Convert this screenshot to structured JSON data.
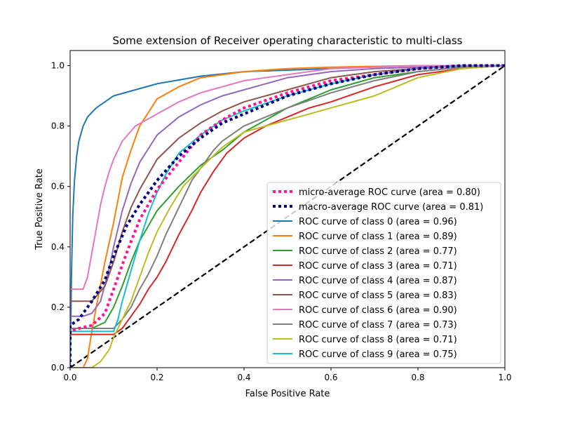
{
  "chart_data": {
    "type": "line",
    "title": "Some extension of Receiver operating characteristic to multi-class",
    "xlabel": "False Positive Rate",
    "ylabel": "True Positive Rate",
    "xlim": [
      0.0,
      1.0
    ],
    "ylim": [
      0.0,
      1.05
    ],
    "xticks": [
      "0.0",
      "0.2",
      "0.4",
      "0.6",
      "0.8",
      "1.0"
    ],
    "yticks": [
      "0.0",
      "0.2",
      "0.4",
      "0.6",
      "0.8",
      "1.0"
    ],
    "grid": false,
    "legend_position": "lower-right",
    "chance_line": {
      "x": [
        0,
        1
      ],
      "y": [
        0,
        1
      ],
      "color": "#000000",
      "style": "dashed"
    },
    "series": [
      {
        "name": "micro-average ROC curve (area = 0.80)",
        "color": "#ff1493",
        "style": "dotted",
        "x": [
          0,
          0,
          0.02,
          0.05,
          0.08,
          0.1,
          0.13,
          0.16,
          0.2,
          0.25,
          0.3,
          0.35,
          0.4,
          0.5,
          0.6,
          0.7,
          0.8,
          0.9,
          1.0
        ],
        "y": [
          0,
          0.12,
          0.13,
          0.14,
          0.18,
          0.26,
          0.38,
          0.49,
          0.59,
          0.68,
          0.77,
          0.82,
          0.86,
          0.91,
          0.95,
          0.97,
          0.99,
          1.0,
          1.0
        ]
      },
      {
        "name": "macro-average ROC curve (area = 0.81)",
        "color": "#000080",
        "style": "dotted",
        "x": [
          0,
          0,
          0.02,
          0.05,
          0.08,
          0.1,
          0.13,
          0.16,
          0.2,
          0.25,
          0.3,
          0.35,
          0.4,
          0.5,
          0.6,
          0.7,
          0.8,
          0.9,
          1.0
        ],
        "y": [
          0,
          0.14,
          0.16,
          0.22,
          0.29,
          0.37,
          0.47,
          0.54,
          0.62,
          0.7,
          0.76,
          0.81,
          0.84,
          0.9,
          0.94,
          0.97,
          0.99,
          1.0,
          1.0
        ]
      },
      {
        "name": "ROC curve of class 0 (area = 0.96)",
        "color": "#1f77b4",
        "style": "solid",
        "x": [
          0,
          0.003,
          0.006,
          0.01,
          0.015,
          0.02,
          0.03,
          0.04,
          0.06,
          0.08,
          0.1,
          0.15,
          0.2,
          0.3,
          0.4,
          0.6,
          0.8,
          1.0
        ],
        "y": [
          0,
          0.3,
          0.5,
          0.62,
          0.7,
          0.75,
          0.8,
          0.83,
          0.86,
          0.88,
          0.9,
          0.92,
          0.94,
          0.965,
          0.98,
          0.99,
          1.0,
          1.0
        ]
      },
      {
        "name": "ROC curve of class 1 (area = 0.89)",
        "color": "#ff7f0e",
        "style": "solid",
        "x": [
          0,
          0.03,
          0.04,
          0.05,
          0.06,
          0.08,
          0.1,
          0.12,
          0.14,
          0.16,
          0.2,
          0.25,
          0.3,
          0.4,
          0.5,
          0.6,
          0.8,
          1.0
        ],
        "y": [
          0,
          0,
          0.03,
          0.12,
          0.2,
          0.35,
          0.48,
          0.63,
          0.72,
          0.8,
          0.89,
          0.93,
          0.96,
          0.98,
          0.99,
          0.995,
          1.0,
          1.0
        ]
      },
      {
        "name": "ROC curve of class 2 (area = 0.77)",
        "color": "#2ca02c",
        "style": "solid",
        "x": [
          0,
          0,
          0.05,
          0.08,
          0.1,
          0.12,
          0.14,
          0.16,
          0.18,
          0.2,
          0.25,
          0.3,
          0.35,
          0.4,
          0.5,
          0.6,
          0.7,
          0.8,
          0.9,
          1.0
        ],
        "y": [
          0,
          0.13,
          0.13,
          0.15,
          0.2,
          0.27,
          0.35,
          0.42,
          0.47,
          0.52,
          0.6,
          0.67,
          0.72,
          0.78,
          0.86,
          0.92,
          0.96,
          0.98,
          0.995,
          1.0
        ]
      },
      {
        "name": "ROC curve of class 3 (area = 0.71)",
        "color": "#d62728",
        "style": "solid",
        "x": [
          0,
          0,
          0.1,
          0.12,
          0.14,
          0.16,
          0.18,
          0.2,
          0.22,
          0.25,
          0.28,
          0.3,
          0.33,
          0.36,
          0.4,
          0.45,
          0.5,
          0.55,
          0.6,
          0.7,
          0.8,
          0.9,
          1.0
        ],
        "y": [
          0,
          0.11,
          0.11,
          0.13,
          0.17,
          0.21,
          0.26,
          0.3,
          0.35,
          0.44,
          0.52,
          0.58,
          0.65,
          0.71,
          0.76,
          0.8,
          0.83,
          0.86,
          0.88,
          0.93,
          0.97,
          0.99,
          1.0
        ]
      },
      {
        "name": "ROC curve of class 4 (area = 0.87)",
        "color": "#9467bd",
        "style": "solid",
        "x": [
          0,
          0,
          0.03,
          0.05,
          0.07,
          0.09,
          0.1,
          0.12,
          0.14,
          0.16,
          0.2,
          0.25,
          0.3,
          0.35,
          0.4,
          0.5,
          0.6,
          0.7,
          0.8,
          1.0
        ],
        "y": [
          0,
          0.17,
          0.17,
          0.18,
          0.22,
          0.33,
          0.4,
          0.52,
          0.61,
          0.68,
          0.77,
          0.83,
          0.87,
          0.9,
          0.92,
          0.96,
          0.98,
          0.99,
          0.995,
          1.0
        ]
      },
      {
        "name": "ROC curve of class 5 (area = 0.83)",
        "color": "#8c564b",
        "style": "solid",
        "x": [
          0,
          0,
          0.05,
          0.08,
          0.1,
          0.12,
          0.14,
          0.16,
          0.18,
          0.2,
          0.25,
          0.3,
          0.35,
          0.4,
          0.5,
          0.6,
          0.7,
          0.8,
          0.9,
          1.0
        ],
        "y": [
          0,
          0.22,
          0.22,
          0.27,
          0.35,
          0.45,
          0.53,
          0.59,
          0.64,
          0.69,
          0.76,
          0.81,
          0.85,
          0.88,
          0.92,
          0.96,
          0.98,
          0.99,
          1.0,
          1.0
        ]
      },
      {
        "name": "ROC curve of class 6 (area = 0.90)",
        "color": "#e377c2",
        "style": "solid",
        "x": [
          0,
          0,
          0.03,
          0.04,
          0.05,
          0.06,
          0.07,
          0.08,
          0.09,
          0.1,
          0.12,
          0.15,
          0.2,
          0.25,
          0.3,
          0.4,
          0.5,
          0.6,
          0.8,
          1.0
        ],
        "y": [
          0,
          0.26,
          0.26,
          0.3,
          0.38,
          0.46,
          0.54,
          0.6,
          0.65,
          0.69,
          0.75,
          0.8,
          0.84,
          0.88,
          0.91,
          0.95,
          0.97,
          0.99,
          1.0,
          1.0
        ]
      },
      {
        "name": "ROC curve of class 7 (area = 0.73)",
        "color": "#7f7f7f",
        "style": "solid",
        "x": [
          0,
          0,
          0.1,
          0.12,
          0.14,
          0.16,
          0.18,
          0.2,
          0.22,
          0.24,
          0.26,
          0.28,
          0.3,
          0.33,
          0.35,
          0.4,
          0.5,
          0.6,
          0.7,
          0.8,
          0.9,
          1.0
        ],
        "y": [
          0,
          0.13,
          0.13,
          0.16,
          0.2,
          0.26,
          0.31,
          0.37,
          0.44,
          0.5,
          0.56,
          0.62,
          0.66,
          0.72,
          0.75,
          0.8,
          0.86,
          0.91,
          0.95,
          0.98,
          0.995,
          1.0
        ]
      },
      {
        "name": "ROC curve of class 8 (area = 0.71)",
        "color": "#bcbd22",
        "style": "solid",
        "x": [
          0,
          0.05,
          0.07,
          0.09,
          0.1,
          0.12,
          0.14,
          0.16,
          0.18,
          0.2,
          0.23,
          0.26,
          0.3,
          0.35,
          0.4,
          0.5,
          0.6,
          0.7,
          0.75,
          0.8,
          0.9,
          1.0
        ],
        "y": [
          0,
          0,
          0.02,
          0.06,
          0.1,
          0.16,
          0.22,
          0.3,
          0.38,
          0.45,
          0.53,
          0.6,
          0.66,
          0.73,
          0.78,
          0.82,
          0.86,
          0.9,
          0.93,
          0.96,
          0.99,
          1.0
        ]
      },
      {
        "name": "ROC curve of class 9 (area = 0.75)",
        "color": "#17becf",
        "style": "solid",
        "x": [
          0,
          0,
          0.1,
          0.11,
          0.12,
          0.14,
          0.16,
          0.18,
          0.2,
          0.22,
          0.25,
          0.3,
          0.35,
          0.4,
          0.5,
          0.6,
          0.7,
          0.8,
          0.9,
          1.0
        ],
        "y": [
          0,
          0.12,
          0.12,
          0.16,
          0.22,
          0.32,
          0.42,
          0.51,
          0.58,
          0.64,
          0.71,
          0.77,
          0.82,
          0.85,
          0.9,
          0.94,
          0.97,
          0.99,
          1.0,
          1.0
        ]
      }
    ]
  }
}
